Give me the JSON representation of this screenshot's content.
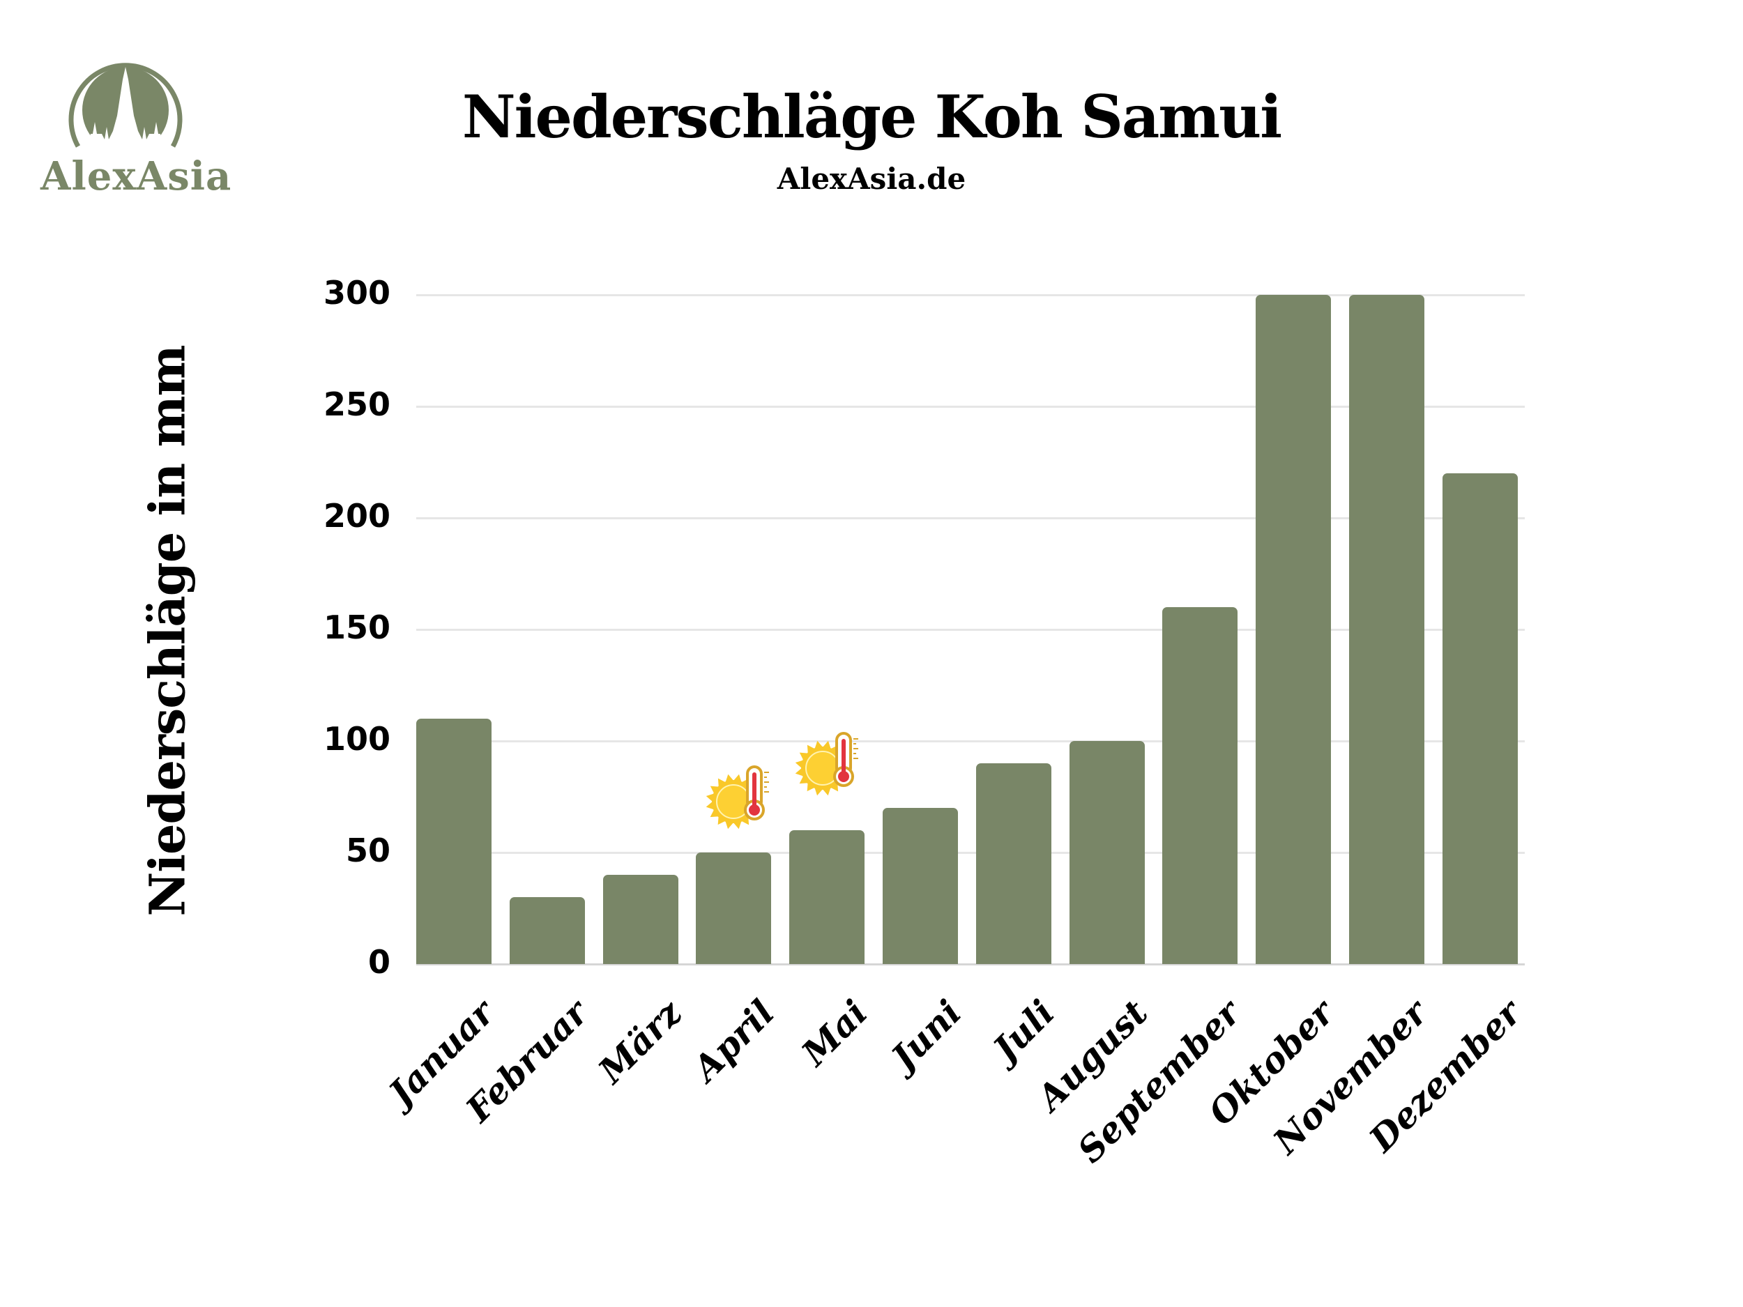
{
  "logo": {
    "text": "AlexAsia",
    "color": "#7a8767"
  },
  "header": {
    "title": "Niederschläge Koh Samui",
    "subtitle": "AlexAsia.de"
  },
  "colors": {
    "bar": "#798667",
    "grid": "#e6e6e6",
    "sun": "#f9c829",
    "thermometer": "#e2343f"
  },
  "axis": {
    "ylabel": "Niederschläge in mm",
    "yticks": [
      "300",
      "250",
      "200",
      "150",
      "100",
      "50",
      "0"
    ]
  },
  "months": [
    "Januar",
    "Februar",
    "März",
    "April",
    "Mai",
    "Juni",
    "Juli",
    "August",
    "September",
    "Oktober",
    "November",
    "Dezember"
  ],
  "icons": [
    {
      "name": "hot-sun-thermometer-icon",
      "month": "April"
    },
    {
      "name": "hot-sun-thermometer-icon",
      "month": "Mai"
    }
  ],
  "chart_data": {
    "type": "bar",
    "title": "Niederschläge Koh Samui",
    "subtitle": "AlexAsia.de",
    "xlabel": "",
    "ylabel": "Niederschläge in mm",
    "categories": [
      "Januar",
      "Februar",
      "März",
      "April",
      "Mai",
      "Juni",
      "Juli",
      "August",
      "September",
      "Oktober",
      "November",
      "Dezember"
    ],
    "values": [
      110,
      30,
      40,
      50,
      60,
      70,
      90,
      100,
      160,
      300,
      300,
      220
    ],
    "ylim": [
      0,
      300
    ],
    "yticks": [
      0,
      50,
      100,
      150,
      200,
      250,
      300
    ],
    "grid": true,
    "legend": null,
    "annotations": [
      "sun-with-thermometer icon above April",
      "sun-with-thermometer icon above Mai"
    ]
  }
}
